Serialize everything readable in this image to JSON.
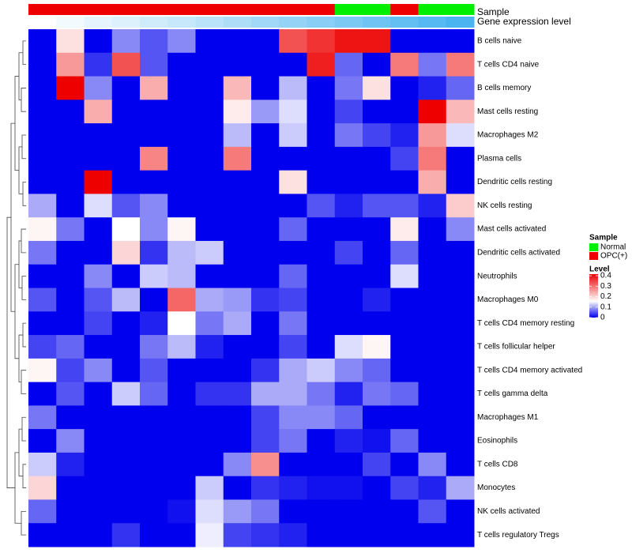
{
  "chart_data": {
    "type": "heatmap",
    "annotation_tracks": [
      {
        "label": "Sample",
        "label_key": "sample"
      },
      {
        "label": "Gene expression level",
        "label_key": "expr"
      }
    ],
    "sample_groups": [
      "OPC",
      "OPC",
      "OPC",
      "OPC",
      "OPC",
      "OPC",
      "OPC",
      "OPC",
      "OPC",
      "OPC",
      "OPC",
      "Normal",
      "Normal",
      "OPC",
      "Normal",
      "Normal"
    ],
    "expression_track": [
      0.03,
      0.07,
      0.11,
      0.14,
      0.18,
      0.21,
      0.25,
      0.29,
      0.33,
      0.37,
      0.41,
      0.45,
      0.49,
      0.53,
      0.57,
      0.61
    ],
    "rows": [
      "B cells naive",
      "T cells CD4 naive",
      "B cells memory",
      "Mast cells resting",
      "Macrophages M2",
      "Plasma cells",
      "Dendritic cells resting",
      "NK cells resting",
      "Mast cells activated",
      "Dendritic cells activated",
      "Neutrophils",
      "Macrophages M0",
      "T cells CD4 memory resting",
      "T cells follicular helper",
      "T cells CD4 memory activated",
      "T cells gamma delta",
      "Macrophages M1",
      "Eosinophils",
      "T cells CD8",
      "Monocytes",
      "NK cells activated",
      "T cells regulatory  Tregs"
    ],
    "values": [
      [
        0,
        0.18,
        0,
        0.08,
        0.05,
        0.08,
        0,
        0,
        0,
        0.32,
        0.35,
        0.38,
        0.38,
        0,
        0,
        0
      ],
      [
        0,
        0.25,
        0.03,
        0.32,
        0.05,
        0,
        0,
        0,
        0,
        0,
        0.37,
        0.06,
        0,
        0.28,
        0.07,
        0.28
      ],
      [
        0,
        0.4,
        0.08,
        0,
        0.23,
        0,
        0,
        0.22,
        0,
        0.11,
        0,
        0.07,
        0.18,
        0,
        0.02,
        0.06
      ],
      [
        0,
        0,
        0.23,
        0,
        0,
        0,
        0,
        0.17,
        0.09,
        0.13,
        0,
        0.04,
        0,
        0,
        0.4,
        0.22
      ],
      [
        0,
        0,
        0,
        0,
        0,
        0,
        0,
        0.11,
        0,
        0.12,
        0,
        0.07,
        0.04,
        0.02,
        0.25,
        0.13
      ],
      [
        0,
        0,
        0,
        0,
        0.27,
        0,
        0,
        0.28,
        0,
        0,
        0,
        0,
        0,
        0.04,
        0.28,
        0
      ],
      [
        0,
        0,
        0.4,
        0,
        0,
        0,
        0,
        0,
        0,
        0.18,
        0,
        0,
        0,
        0,
        0.23,
        0
      ],
      [
        0.1,
        0,
        0.13,
        0.05,
        0.08,
        0,
        0,
        0,
        0,
        0,
        0.05,
        0.02,
        0.05,
        0.05,
        0.02,
        0.2
      ],
      [
        0.16,
        0.07,
        0,
        0.15,
        0.08,
        0.16,
        0,
        0,
        0,
        0.06,
        0,
        0,
        0,
        0.17,
        0,
        0.08
      ],
      [
        0.07,
        0,
        0,
        0.19,
        0.03,
        0.11,
        0.12,
        0,
        0,
        0,
        0,
        0.04,
        0,
        0.06,
        0,
        0
      ],
      [
        0,
        0,
        0.08,
        0,
        0.12,
        0.11,
        0,
        0,
        0,
        0.06,
        0,
        0,
        0,
        0.13,
        0,
        0
      ],
      [
        0.05,
        0,
        0.05,
        0.11,
        0,
        0.3,
        0.1,
        0.09,
        0.03,
        0.04,
        0,
        0,
        0.02,
        0,
        0,
        0
      ],
      [
        0,
        0,
        0.04,
        0,
        0.02,
        0.15,
        0.07,
        0.1,
        0,
        0.07,
        0,
        0,
        0,
        0,
        0,
        0
      ],
      [
        0.04,
        0.06,
        0,
        0,
        0.07,
        0.11,
        0.02,
        0,
        0,
        0.04,
        0,
        0.13,
        0.16,
        0,
        0,
        0
      ],
      [
        0.16,
        0.04,
        0.08,
        0,
        0.05,
        0,
        0,
        0,
        0.03,
        0.1,
        0.12,
        0.08,
        0.06,
        0,
        0,
        0
      ],
      [
        0,
        0.05,
        0,
        0.12,
        0.06,
        0,
        0.03,
        0.03,
        0.1,
        0.1,
        0.07,
        0.02,
        0.07,
        0.06,
        0,
        0
      ],
      [
        0.07,
        0,
        0,
        0,
        0,
        0,
        0,
        0,
        0.04,
        0.08,
        0.08,
        0.06,
        0,
        0,
        0,
        0
      ],
      [
        0,
        0.08,
        0,
        0,
        0,
        0,
        0,
        0,
        0.04,
        0.07,
        0,
        0.02,
        0.01,
        0.06,
        0,
        0
      ],
      [
        0.12,
        0.02,
        0,
        0,
        0,
        0,
        0,
        0.08,
        0.26,
        0,
        0,
        0,
        0.04,
        0,
        0.08,
        0
      ],
      [
        0.19,
        0,
        0,
        0,
        0,
        0,
        0.12,
        0,
        0.03,
        0.02,
        0.01,
        0.01,
        0,
        0.04,
        0.02,
        0.1
      ],
      [
        0.06,
        0,
        0,
        0,
        0,
        0.01,
        0.13,
        0.09,
        0.07,
        0,
        0,
        0,
        0,
        0,
        0.05,
        0
      ],
      [
        0,
        0,
        0,
        0.03,
        0,
        0,
        0.14,
        0.04,
        0.03,
        0.02,
        0,
        0,
        0,
        0,
        0,
        0
      ]
    ],
    "legend": {
      "sample_title": "Sample",
      "sample_entries": [
        {
          "label": "Normal",
          "color": "#00ee00"
        },
        {
          "label": "OPC(+)",
          "color": "#ee0000"
        }
      ],
      "level_title": "Level",
      "level_ticks": [
        {
          "value": 0.4,
          "label": "0.4"
        },
        {
          "value": 0.3,
          "label": "0.3"
        },
        {
          "value": 0.2,
          "label": "0.2"
        },
        {
          "value": 0.1,
          "label": "0.1"
        },
        {
          "value": 0,
          "label": "0"
        }
      ],
      "placement": "right"
    },
    "colors": {
      "low": "#0000ee",
      "mid": "#ffffff",
      "high": "#ee0000",
      "mid_value": 0.15,
      "range": [
        0,
        0.4
      ],
      "sample_OPC": "#ee0000",
      "sample_Normal": "#00ee00",
      "expr_low": "#ffffff",
      "expr_high": "#4ab4f0"
    },
    "row_dendrogram": true
  }
}
